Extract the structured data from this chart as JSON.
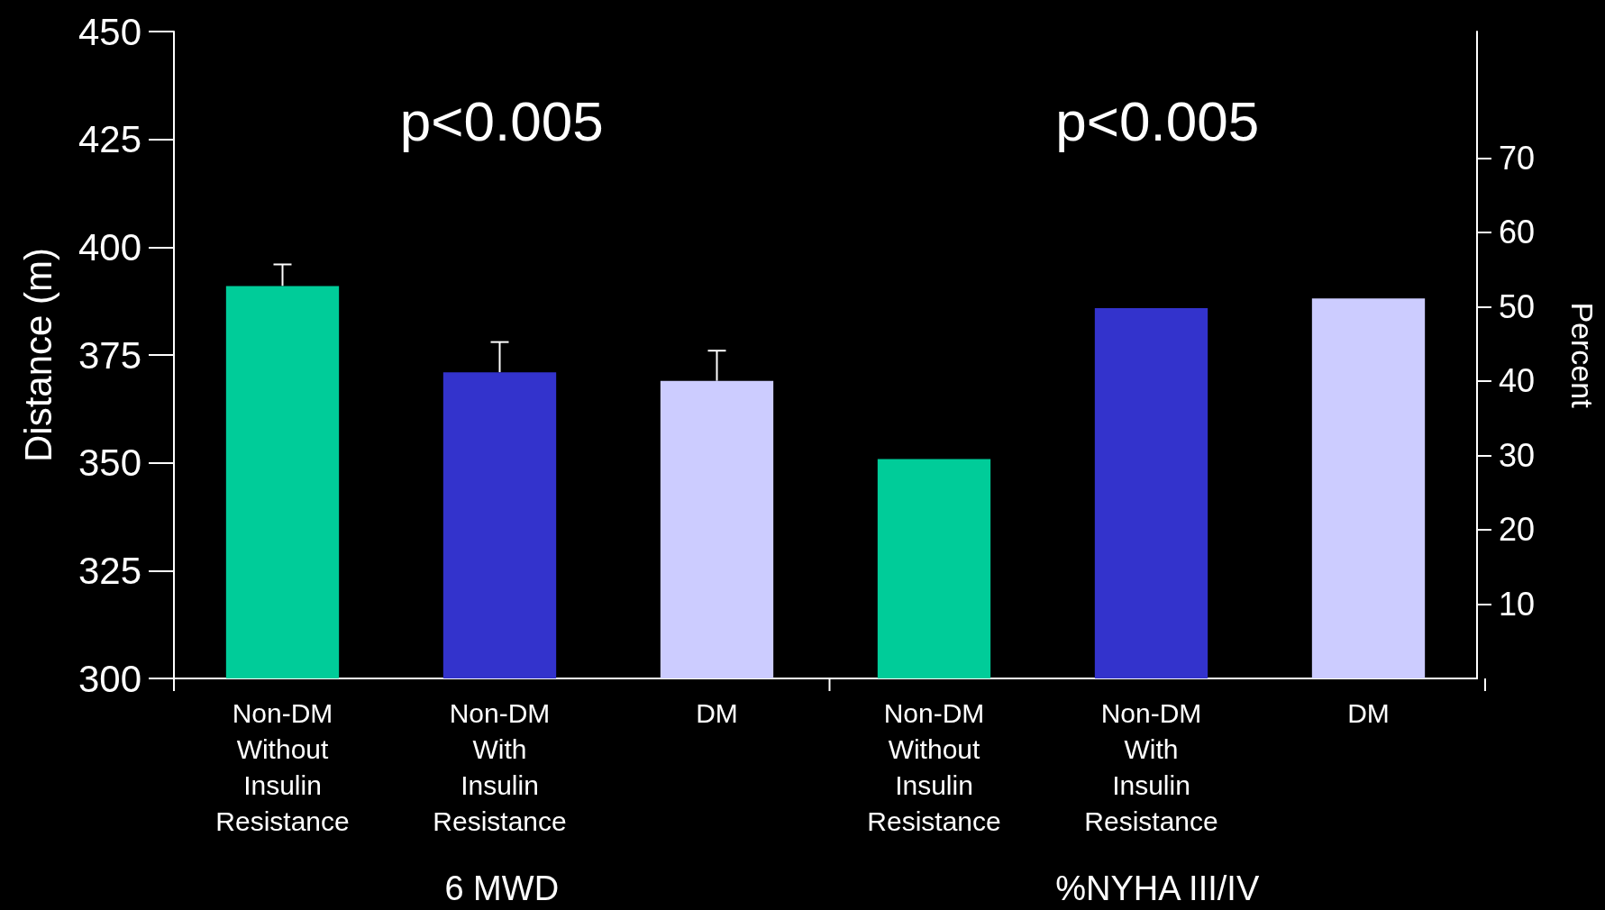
{
  "chart_data": {
    "type": "bar",
    "categories": [
      "Non-DM\nWithout\nInsulin\nResistance",
      "Non-DM\nWith\nInsulin\nResistance",
      "DM",
      "Non-DM\nWithout\nInsulin\nResistance",
      "Non-DM\nWith\nInsulin\nResistance",
      "DM"
    ],
    "series": [
      {
        "colors": [
          "#00cc99",
          "#3333cc",
          "#ccccff",
          null,
          null,
          null
        ],
        "values": [
          391,
          371,
          369,
          null,
          null,
          null
        ],
        "errors": [
          [
            391,
            396
          ],
          [
            371,
            378
          ],
          [
            369,
            376
          ],
          null,
          null,
          null
        ]
      },
      {
        "axis": "y2",
        "colors": [
          null,
          null,
          null,
          "#00cc99",
          "#3333cc",
          "#ccccff"
        ],
        "values": [
          null,
          null,
          null,
          29.5,
          49.8,
          51.1
        ]
      }
    ],
    "ylabel": "Distance (m)",
    "y2label": "Percent",
    "ylim": [
      300,
      450
    ],
    "yticks": [
      300,
      325,
      350,
      375,
      400,
      425,
      450
    ],
    "y2lim": [
      0,
      87
    ],
    "y2ticks": [
      10,
      20,
      30,
      40,
      50,
      60,
      70
    ],
    "annotations": [
      "p<0.005",
      "p<0.005",
      "6 MWD",
      "%NYHA III/IV"
    ]
  }
}
